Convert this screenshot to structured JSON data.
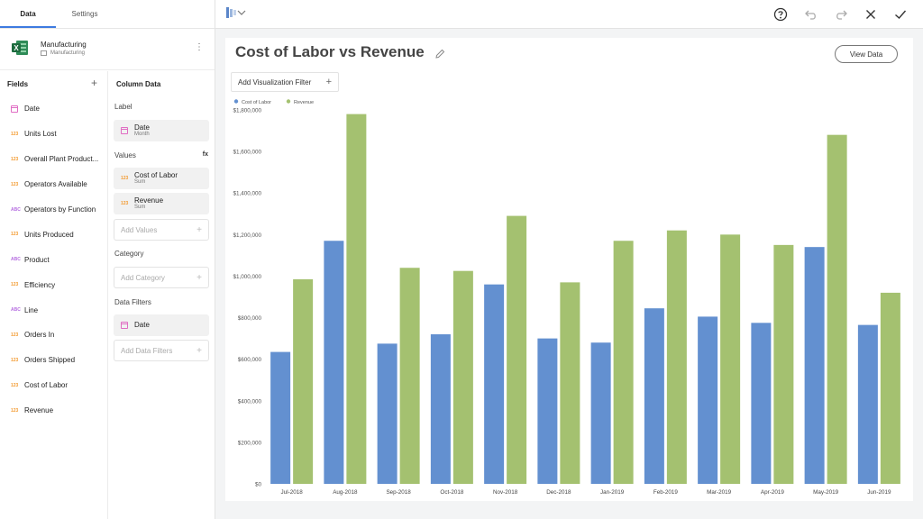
{
  "tabs": [
    {
      "label": "Data"
    },
    {
      "label": "Settings"
    }
  ],
  "source": {
    "name": "Manufacturing",
    "sheet": "Manufacturing"
  },
  "fields": {
    "title": "Fields",
    "items": [
      {
        "label": "Date",
        "type": "date"
      },
      {
        "label": "Units Lost",
        "type": "123"
      },
      {
        "label": "Overall Plant Product...",
        "type": "123"
      },
      {
        "label": "Operators Available",
        "type": "123"
      },
      {
        "label": "Operators by Function",
        "type": "ABC"
      },
      {
        "label": "Units Produced",
        "type": "123"
      },
      {
        "label": "Product",
        "type": "ABC"
      },
      {
        "label": "Efficiency",
        "type": "123"
      },
      {
        "label": "Line",
        "type": "ABC"
      },
      {
        "label": "Orders In",
        "type": "123"
      },
      {
        "label": "Orders Shipped",
        "type": "123"
      },
      {
        "label": "Cost of Labor",
        "type": "123"
      },
      {
        "label": "Revenue",
        "type": "123"
      }
    ]
  },
  "column_data": {
    "title": "Column Data",
    "label_section": "Label",
    "label_pill": {
      "name": "Date",
      "sub": "Month"
    },
    "values_section": "Values",
    "fx": "fx",
    "values": [
      {
        "name": "Cost of Labor",
        "sub": "Sum",
        "type": "123"
      },
      {
        "name": "Revenue",
        "sub": "Sum",
        "type": "123"
      }
    ],
    "add_values": "Add Values",
    "category_section": "Category",
    "add_category": "Add Category",
    "filters_section": "Data Filters",
    "filter_pill": {
      "name": "Date"
    },
    "add_filters": "Add Data Filters"
  },
  "card": {
    "title": "Cost of Labor vs Revenue",
    "view_data": "View Data",
    "add_filter": "Add Visualization Filter"
  },
  "icons": {
    "help": "help-circle-icon",
    "undo": "undo-icon",
    "redo": "redo-icon",
    "close": "close-icon",
    "confirm": "check-icon",
    "edit": "pencil-icon"
  },
  "chart_data": {
    "type": "bar",
    "categories": [
      "Jul-2018",
      "Aug-2018",
      "Sep-2018",
      "Oct-2018",
      "Nov-2018",
      "Dec-2018",
      "Jan-2019",
      "Feb-2019",
      "Mar-2019",
      "Apr-2019",
      "May-2019",
      "Jun-2019"
    ],
    "series": [
      {
        "name": "Cost of Labor",
        "color": "#6390d0",
        "values": [
          635000,
          1170000,
          675000,
          720000,
          960000,
          700000,
          680000,
          845000,
          805000,
          775000,
          1140000,
          765000
        ]
      },
      {
        "name": "Revenue",
        "color": "#a4c170",
        "values": [
          985000,
          1780000,
          1040000,
          1025000,
          1290000,
          970000,
          1170000,
          1220000,
          1200000,
          1150000,
          1680000,
          920000
        ]
      }
    ],
    "ylim": [
      0,
      1800000
    ],
    "yticks": [
      "$0",
      "$200,000",
      "$400,000",
      "$600,000",
      "$800,000",
      "$1,000,000",
      "$1,200,000",
      "$1,400,000",
      "$1,600,000",
      "$1,800,000"
    ],
    "legend": "top-left",
    "grid": false
  }
}
